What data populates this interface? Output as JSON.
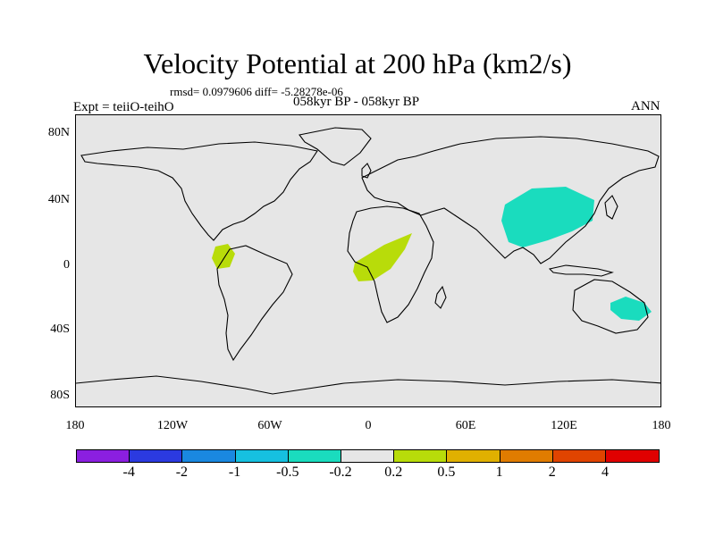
{
  "title": "Velocity Potential at 200 hPa (km2/s)",
  "stats": "rmsd= 0.0979606 diff= -5.28278e-06",
  "expt": "Expt = teiiO-teihO",
  "period": "058kyr BP - 058kyr BP",
  "season": "ANN",
  "lat_labels": [
    "80N",
    "40N",
    "0",
    "40S",
    "80S"
  ],
  "lon_labels": [
    "180",
    "120W",
    "60W",
    "0",
    "60E",
    "120E",
    "180"
  ],
  "colorbar": {
    "colors": [
      "#8b1fe0",
      "#2b3ae0",
      "#1a88e0",
      "#16c0e0",
      "#1adcbe",
      "#e6e6e6",
      "#b8dc0a",
      "#e0b000",
      "#e07c00",
      "#e04400",
      "#e00000"
    ],
    "labels": [
      "-4",
      "-2",
      "-1",
      "-0.5",
      "-0.2",
      "0.2",
      "0.5",
      "1",
      "2",
      "4"
    ]
  },
  "map": {
    "background_color": "#e6e6e6",
    "anomalies": [
      {
        "region": "Central America",
        "value_band": "0.2 to 0.5",
        "color": "#b8dc0a"
      },
      {
        "region": "Central Africa",
        "value_band": "0.2 to 0.5",
        "color": "#b8dc0a"
      },
      {
        "region": "East Asia",
        "value_band": "-0.5 to -0.2",
        "color": "#1adcbe"
      },
      {
        "region": "Eastern Australia",
        "value_band": "-0.5 to -0.2",
        "color": "#1adcbe"
      }
    ]
  }
}
